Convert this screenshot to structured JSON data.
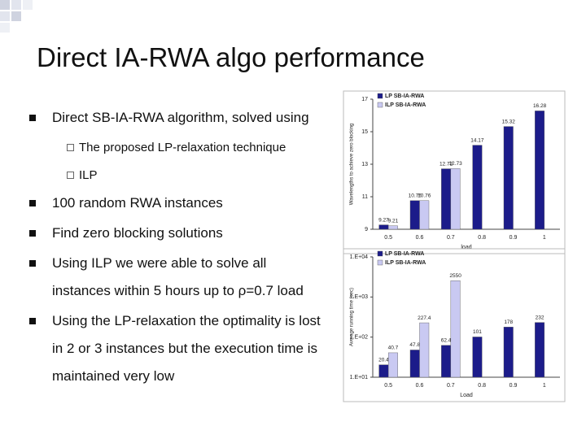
{
  "slide": {
    "title": "Direct IA-RWA algo performance",
    "bullets": [
      {
        "text": "Direct SB-IA-RWA algorithm, solved using",
        "sub": [
          "The proposed LP-relaxation technique",
          "ILP"
        ]
      },
      {
        "text": "100 random RWA instances"
      },
      {
        "text": "Find zero blocking solutions"
      },
      {
        "text": "Using ILP we were able to solve all instances within 5 hours up to ρ=0.7 load"
      },
      {
        "text": "Using the LP-relaxation the optimality is lost in 2 or 3 instances but the execution time is maintained very low"
      }
    ]
  },
  "chart_data": [
    {
      "type": "bar",
      "y_label": "Wavelengths to achieve zero blocking",
      "x_label": "load",
      "categories": [
        "0.5",
        "0.6",
        "0.7",
        "0.8",
        "0.9",
        "1"
      ],
      "series": [
        {
          "name": "LP SB-IA-RWA",
          "color": "#1c1c8a",
          "values": [
            9.27,
            10.76,
            12.72,
            14.17,
            15.32,
            16.28
          ]
        },
        {
          "name": "ILP SB-IA-RWA",
          "color": "#c9c9f2",
          "values": [
            9.21,
            10.76,
            12.73,
            null,
            null,
            null
          ]
        }
      ],
      "ylim": [
        9,
        17
      ],
      "yticks": [
        9,
        11,
        13,
        15,
        17
      ],
      "log_scale": false,
      "grid": false
    },
    {
      "type": "bar",
      "y_label": "Average running time (sec)",
      "x_label": "Load",
      "categories": [
        "0.5",
        "0.6",
        "0.7",
        "0.8",
        "0.9",
        "1"
      ],
      "series": [
        {
          "name": "LP SB-IA-RWA",
          "color": "#1c1c8a",
          "values": [
            20.4,
            47.8,
            62.4,
            101,
            178,
            232
          ]
        },
        {
          "name": "ILP SB-IA-RWA",
          "color": "#c9c9f2",
          "values": [
            40.7,
            227.4,
            2550,
            null,
            null,
            null
          ]
        }
      ],
      "ylim": [
        10,
        10000
      ],
      "yticks": [
        {
          "value": 10,
          "label": "1.E+01"
        },
        {
          "value": 100,
          "label": "1.E+02"
        },
        {
          "value": 1000,
          "label": "1.E+03"
        },
        {
          "value": 10000,
          "label": "1.E+04"
        }
      ],
      "log_scale": true,
      "grid": false
    }
  ]
}
